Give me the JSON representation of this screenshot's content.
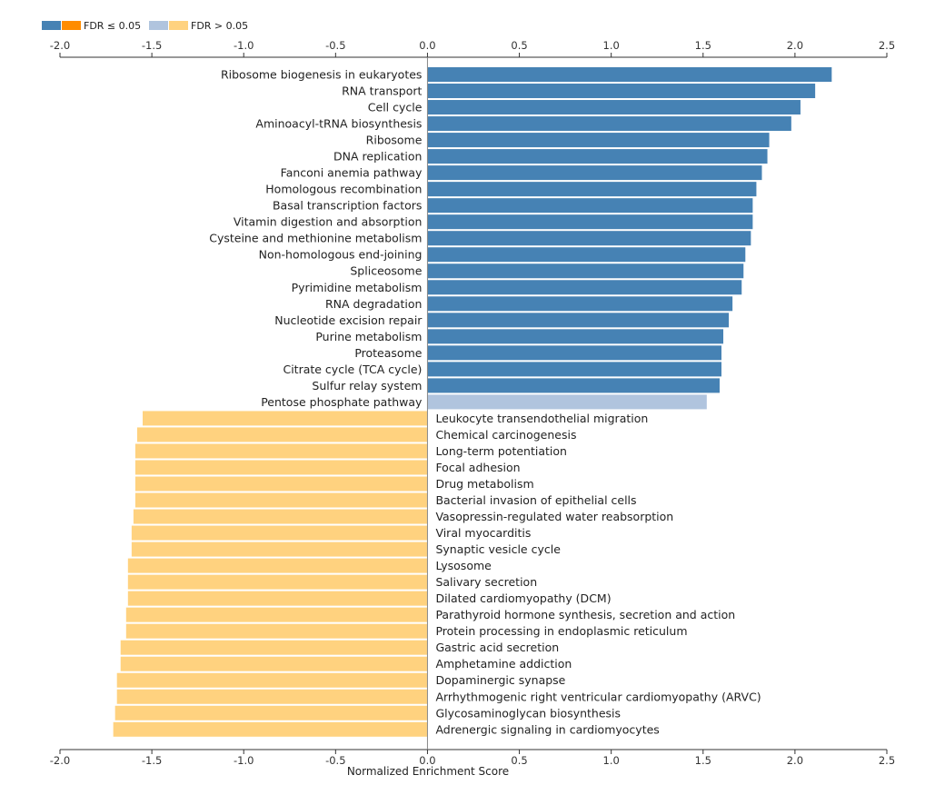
{
  "chart_data": {
    "type": "bar",
    "orientation": "horizontal",
    "xlabel": "Normalized Enrichment Score",
    "xlim": [
      -2.0,
      2.5
    ],
    "xticks": [
      -2.0,
      -1.5,
      -1.0,
      -0.5,
      0.0,
      0.5,
      1.0,
      1.5,
      2.0,
      2.5
    ],
    "xtick_labels": [
      "-2.0",
      "-1.5",
      "-1.0",
      "-0.5",
      "0.0",
      "0.5",
      "1.0",
      "1.5",
      "2.0",
      "2.5"
    ],
    "grid": false,
    "legend_position": "top-left",
    "legend": [
      {
        "label": "FDR ≤ 0.05",
        "colors": [
          "#4682b4",
          "#ff8c00"
        ]
      },
      {
        "label": "FDR > 0.05",
        "colors": [
          "#b0c4de",
          "#ffd27f"
        ]
      }
    ],
    "categories": [
      "Ribosome biogenesis in eukaryotes",
      "RNA transport",
      "Cell cycle",
      "Aminoacyl-tRNA biosynthesis",
      "Ribosome",
      "DNA replication",
      "Fanconi anemia pathway",
      "Homologous recombination",
      "Basal transcription factors",
      "Vitamin digestion and absorption",
      "Cysteine and methionine metabolism",
      "Non-homologous end-joining",
      "Spliceosome",
      "Pyrimidine metabolism",
      "RNA degradation",
      "Nucleotide excision repair",
      "Purine metabolism",
      "Proteasome",
      "Citrate cycle (TCA cycle)",
      "Sulfur relay system",
      "Pentose phosphate pathway",
      "Leukocyte transendothelial migration",
      "Chemical carcinogenesis",
      "Long-term potentiation",
      "Focal adhesion",
      "Drug metabolism",
      "Bacterial invasion of epithelial cells",
      "Vasopressin-regulated water reabsorption",
      "Viral myocarditis",
      "Synaptic vesicle cycle",
      "Lysosome",
      "Salivary secretion",
      "Dilated cardiomyopathy (DCM)",
      "Parathyroid hormone synthesis, secretion and action",
      "Protein processing in endoplasmic reticulum",
      "Gastric acid secretion",
      "Amphetamine addiction",
      "Dopaminergic synapse",
      "Arrhythmogenic right ventricular cardiomyopathy (ARVC)",
      "Glycosaminoglycan biosynthesis",
      "Adrenergic signaling in cardiomyocytes"
    ],
    "values": [
      2.2,
      2.11,
      2.03,
      1.98,
      1.86,
      1.85,
      1.82,
      1.79,
      1.77,
      1.77,
      1.76,
      1.73,
      1.72,
      1.71,
      1.66,
      1.64,
      1.61,
      1.6,
      1.6,
      1.59,
      1.52,
      -1.55,
      -1.58,
      -1.59,
      -1.59,
      -1.59,
      -1.59,
      -1.6,
      -1.61,
      -1.61,
      -1.63,
      -1.63,
      -1.63,
      -1.64,
      -1.64,
      -1.67,
      -1.67,
      -1.69,
      -1.69,
      -1.7,
      -1.71
    ],
    "fdr_significant": [
      true,
      true,
      true,
      true,
      true,
      true,
      true,
      true,
      true,
      true,
      true,
      true,
      true,
      true,
      true,
      true,
      true,
      true,
      true,
      true,
      false,
      false,
      false,
      false,
      false,
      false,
      false,
      false,
      false,
      false,
      false,
      false,
      false,
      false,
      false,
      false,
      false,
      false,
      false,
      false,
      false
    ],
    "colors": {
      "positive_significant": "#4682b4",
      "negative_significant": "#ff8c00",
      "positive_not_significant": "#b0c4de",
      "negative_not_significant": "#ffd27f"
    }
  }
}
